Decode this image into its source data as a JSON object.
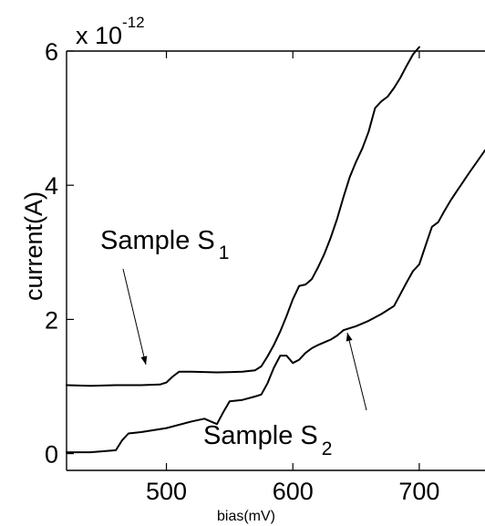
{
  "chart_data": {
    "type": "line",
    "xlabel": "bias(mV)",
    "ylabel": "current(A)",
    "xlim": [
      421,
      752
    ],
    "ylim": [
      -0.25,
      6
    ],
    "y_multiplier_base": "x 10",
    "y_multiplier_exponent": "-12",
    "x_ticks": [
      500,
      600,
      700
    ],
    "y_ticks": [
      0,
      2,
      4,
      6
    ],
    "grid": false,
    "series": [
      {
        "name": "Sample S1",
        "x": [
          421,
          440,
          460,
          480,
          495,
          500,
          505,
          510,
          520,
          540,
          560,
          570,
          575,
          580,
          585,
          590,
          595,
          600,
          605,
          610,
          615,
          620,
          625,
          630,
          635,
          640,
          645,
          650,
          655,
          660,
          665,
          670,
          675,
          680,
          685,
          690,
          695,
          700
        ],
        "y": [
          1.02,
          1.01,
          1.02,
          1.02,
          1.03,
          1.06,
          1.15,
          1.22,
          1.22,
          1.21,
          1.22,
          1.24,
          1.3,
          1.45,
          1.62,
          1.82,
          2.05,
          2.3,
          2.5,
          2.52,
          2.6,
          2.78,
          2.98,
          3.22,
          3.5,
          3.82,
          4.12,
          4.35,
          4.55,
          4.8,
          5.15,
          5.25,
          5.32,
          5.45,
          5.6,
          5.78,
          5.95,
          6.06
        ]
      },
      {
        "name": "Sample S2",
        "x": [
          421,
          440,
          460,
          465,
          470,
          480,
          500,
          520,
          530,
          535,
          540,
          545,
          550,
          560,
          570,
          575,
          580,
          585,
          590,
          595,
          600,
          605,
          610,
          615,
          620,
          625,
          630,
          635,
          640,
          650,
          660,
          670,
          680,
          690,
          695,
          700,
          705,
          710,
          715,
          720,
          725,
          730,
          740,
          752
        ],
        "y": [
          0.02,
          0.02,
          0.05,
          0.2,
          0.3,
          0.32,
          0.38,
          0.48,
          0.52,
          0.48,
          0.44,
          0.62,
          0.78,
          0.8,
          0.85,
          0.88,
          1.05,
          1.28,
          1.46,
          1.46,
          1.35,
          1.4,
          1.5,
          1.57,
          1.62,
          1.66,
          1.7,
          1.76,
          1.84,
          1.9,
          1.98,
          2.08,
          2.2,
          2.55,
          2.72,
          2.82,
          3.1,
          3.38,
          3.45,
          3.62,
          3.78,
          3.92,
          4.2,
          4.52
        ]
      }
    ],
    "annotations": [
      {
        "text": "Sample S",
        "subscript": "1"
      },
      {
        "text": "Sample S",
        "subscript": "2"
      }
    ]
  }
}
